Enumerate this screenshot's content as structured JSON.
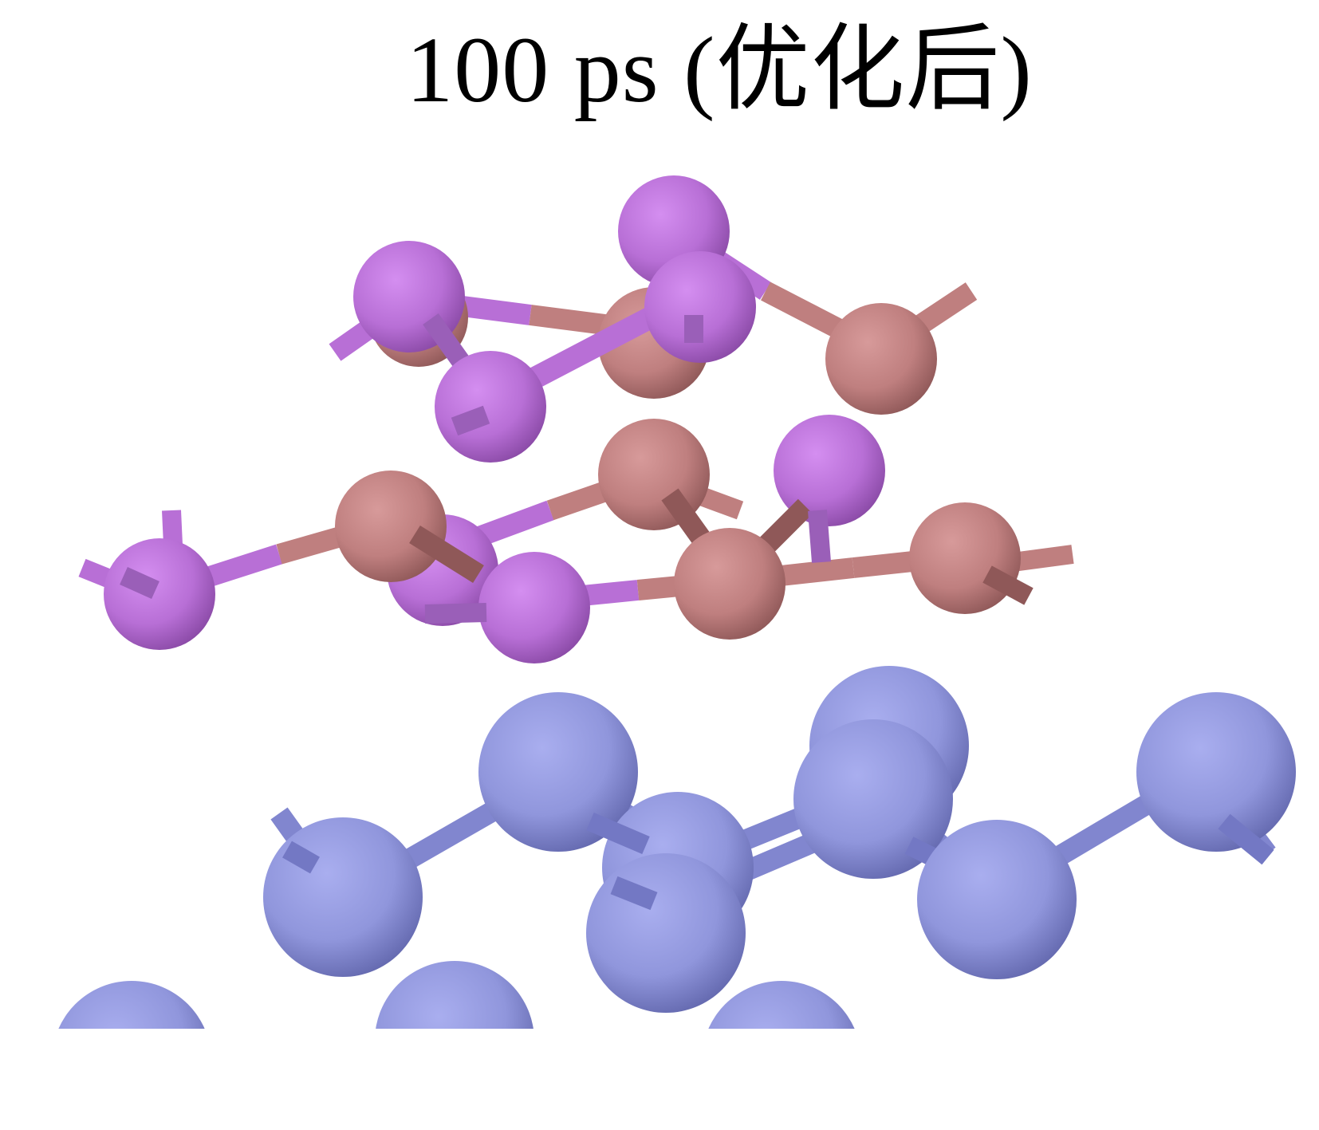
{
  "figure": {
    "title": "100 ps (优化后)"
  },
  "colors": {
    "purple_atom": "#b86fd6",
    "brown_atom": "#c07f7f",
    "blue_atom": "#9096dc",
    "background": "#ffffff"
  },
  "legend_icons": [
    "purple-atom-icon",
    "brown-atom-icon",
    "blue-atom-icon"
  ]
}
